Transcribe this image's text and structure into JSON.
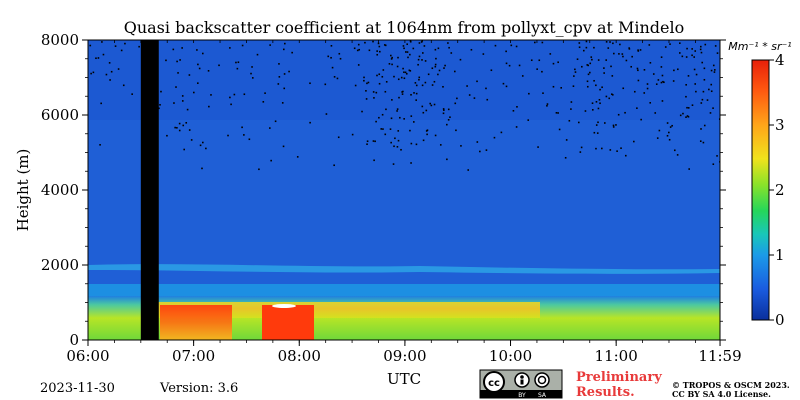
{
  "chart_data": {
    "type": "heatmap",
    "title": "Quasi backscatter coefficient at 1064nm from pollyxt_cpv at Mindelo",
    "xlabel": "UTC",
    "ylabel": "Height (m)",
    "x_ticks": [
      "06:00",
      "07:00",
      "08:00",
      "09:00",
      "10:00",
      "11:00",
      "11:59"
    ],
    "y_ticks": [
      "0",
      "2000",
      "4000",
      "6000",
      "8000"
    ],
    "xlim_hours": [
      6.0,
      11.983
    ],
    "ylim": [
      0,
      8000
    ],
    "colorbar": {
      "label": "Mm⁻¹ * sr⁻¹",
      "range": [
        0,
        4
      ],
      "ticks": [
        "0",
        "1",
        "2",
        "3",
        "4"
      ],
      "colormap": "jet"
    },
    "no_data_gap_hours": [
      6.5,
      6.67
    ],
    "features": [
      {
        "name": "aerosol layer near surface",
        "height_m": [
          0,
          1100
        ],
        "value_range": [
          1.5,
          3.2
        ]
      },
      {
        "name": "strong layer 07:00–08:10",
        "height_m": [
          300,
          900
        ],
        "value_range": [
          3.0,
          4.0
        ]
      },
      {
        "name": "lofted thin layer",
        "height_m": [
          1800,
          2100
        ],
        "value_range": [
          1.0,
          1.5
        ]
      },
      {
        "name": "background",
        "height_m": [
          2100,
          8000
        ],
        "value_range": [
          0.2,
          0.5
        ]
      }
    ]
  },
  "footer": {
    "date": "2023-11-30",
    "version": "Version: 3.6",
    "license_by": "BY",
    "license_sa": "SA",
    "preliminary_line1": "Preliminary",
    "preliminary_line2": "Results.",
    "copyright_line1": "© TROPOS & OSCM 2023.",
    "copyright_line2": "CC BY SA 4.0 License."
  },
  "colors": {
    "background_blue": "#1f5fd6",
    "gap": "#000000",
    "preliminary_red": "#e83a3a"
  }
}
